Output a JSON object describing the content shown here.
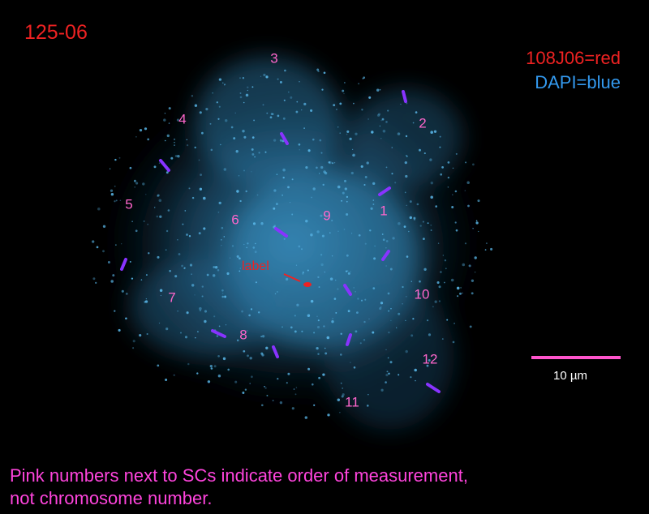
{
  "title": "125-06",
  "legend": [
    "108J06=red",
    "DAPI=blue"
  ],
  "sc_labels": [
    "1",
    "2",
    "3",
    "4",
    "5",
    "6",
    "7",
    "8",
    "9",
    "10",
    "11",
    "12"
  ],
  "marker_label": "label",
  "scale_bar": "10 µm",
  "caption": [
    "Pink numbers next to SCs indicate order of measurement,",
    "not chromosome number."
  ]
}
